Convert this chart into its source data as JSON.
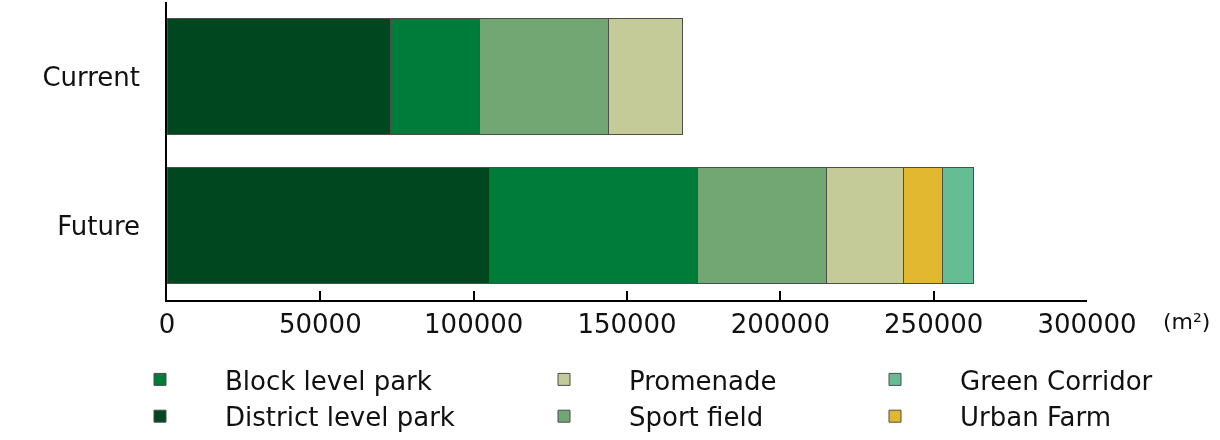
{
  "chart_data": {
    "type": "bar",
    "orientation": "horizontal",
    "stacked": true,
    "categories": [
      "Current",
      "Future"
    ],
    "series": [
      {
        "name": "District level park",
        "color": "#00471f",
        "values": [
          73000,
          105000
        ]
      },
      {
        "name": "Block level park",
        "color": "#007c3a",
        "values": [
          29000,
          68000
        ]
      },
      {
        "name": "Sport field",
        "color": "#72a672",
        "values": [
          42000,
          42000
        ]
      },
      {
        "name": "Promenade",
        "color": "#c4cb98",
        "values": [
          24000,
          25000
        ]
      },
      {
        "name": "Urban Farm",
        "color": "#e1b82f",
        "values": [
          null,
          13000
        ]
      },
      {
        "name": "Green Corridor",
        "color": "#66bd93",
        "values": [
          null,
          10000
        ]
      }
    ],
    "xlim": [
      0,
      300000
    ],
    "xticks": [
      0,
      50000,
      100000,
      150000,
      200000,
      250000,
      300000
    ],
    "xlabel": "(m²)",
    "legend": "bottom"
  }
}
